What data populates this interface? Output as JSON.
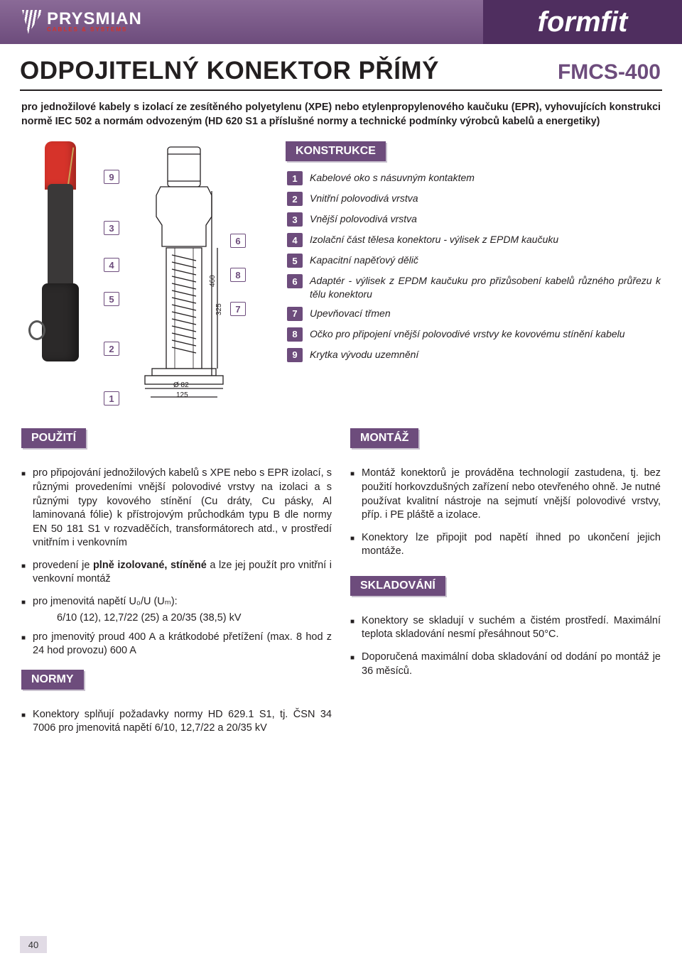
{
  "header": {
    "brand": "PRYSMIAN",
    "brand_sub": "CABLES & SYSTEMS",
    "right_label": "formfit"
  },
  "title": {
    "main": "ODPOJITELNÝ KONEKTOR PŘÍMÝ",
    "code": "FMCS-400"
  },
  "intro": "pro jednožilové kabely s izolací ze zesítěného polyetylenu (XPE) nebo etylenpropylenového kaučuku (EPR), vyhovujících konstrukci normě IEC 502 a normám odvozeným (HD 620 S1 a příslušné normy a technické podmínky výrobců kabelů a energetiky)",
  "drawing": {
    "labels_left": [
      "9",
      "3",
      "4",
      "5",
      "2",
      "1"
    ],
    "labels_mid": [
      "6",
      "8",
      "7"
    ],
    "dims": {
      "height": "460",
      "inner": "325",
      "dia": "Ø 82",
      "base": "125"
    }
  },
  "konstrukce": {
    "heading": "KONSTRUKCE",
    "items": [
      {
        "n": "1",
        "t": "Kabelové oko s násuvným kontaktem"
      },
      {
        "n": "2",
        "t": "Vnitřní polovodivá vrstva"
      },
      {
        "n": "3",
        "t": "Vnější polovodivá vrstva"
      },
      {
        "n": "4",
        "t": "Izolační část tělesa konektoru - výlisek z EPDM kaučuku"
      },
      {
        "n": "5",
        "t": "Kapacitní napěťový dělič"
      },
      {
        "n": "6",
        "t": "Adaptér - výlisek z EPDM kaučuku pro přizůsobení kabelů různého průřezu k tělu konektoru"
      },
      {
        "n": "7",
        "t": "Upevňovací třmen"
      },
      {
        "n": "8",
        "t": "Očko pro připojení vnější polovodivé vrstvy ke kovovému stínění kabelu"
      },
      {
        "n": "9",
        "t": "Krytka vývodu uzemnění"
      }
    ]
  },
  "pouziti": {
    "heading": "POUŽITÍ",
    "items": [
      "pro připojování jednožilových kabelů s XPE nebo s EPR izolací, s různými provedeními vnější polovodivé vrstvy na izolaci a s různými typy kovového stínění (Cu dráty, Cu pásky, Al laminovaná fólie) k přístrojovým průchodkám typu B dle normy EN 50 181 S1 v rozvaděčích, transformátorech atd., v prostředí vnitřním i venkovním",
      "provedení je <b>plně izolované, stíněné</b> a lze jej použít pro vnitřní i venkovní montáž",
      "pro jmenovitá napětí U₀/U (Uₘ):"
    ],
    "voltages": "6/10 (12),  12,7/22 (25) a 20/35 (38,5)  kV",
    "items2": [
      "pro jmenovitý proud 400 A a krátkodobé přetížení (max. 8 hod z 24 hod provozu) 600  A"
    ]
  },
  "normy": {
    "heading": "NORMY",
    "items": [
      "Konektory splňují požadavky normy HD 629.1 S1, tj. ČSN 34 7006 pro jmenovitá napětí 6/10, 12,7/22 a 20/35 kV"
    ]
  },
  "montaz": {
    "heading": "MONTÁŽ",
    "items": [
      "Montáž konektorů je prováděna technologií zastudena, tj. bez použití horkovzdušných zařízení nebo otevřeného ohně. Je nutné používat kvalitní nástroje na sejmutí vnější polovodivé vrstvy, příp. i PE pláště a izolace.",
      "Konektory lze připojit pod napětí ihned po ukončení jejich montáže."
    ]
  },
  "skladovani": {
    "heading": "SKLADOVÁNÍ",
    "items": [
      "Konektory se skladují v suchém a čistém prostředí. Maximální teplota skladování nesmí přesáhnout 50°C.",
      "Doporučená maximální doba skladování od dodání po montáž je 36 měsíců."
    ]
  },
  "page_number": "40",
  "colors": {
    "accent": "#6d4c7c",
    "accent_dark": "#4f2e5f",
    "red": "#d6332a",
    "text": "#231f20",
    "label_shadow": "#c9c2cf"
  }
}
